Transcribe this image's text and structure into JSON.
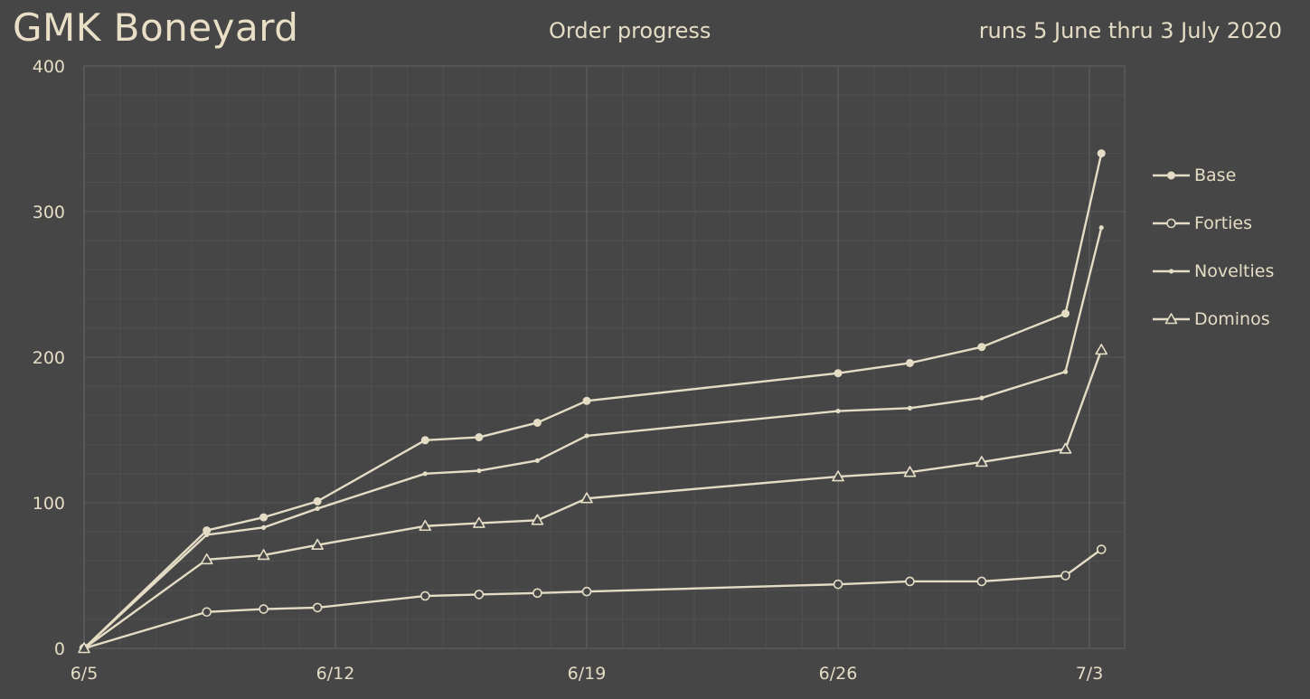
{
  "header": {
    "title": "GMK Boneyard",
    "subtitle": "Order progress",
    "date_range": "runs 5 June thru 3 July 2020"
  },
  "colors": {
    "background": "#464646",
    "line": "#e4dcc4",
    "grid_major": "#5a5a5a",
    "grid_minor": "#505050"
  },
  "chart_data": {
    "type": "line",
    "title": "Order progress",
    "xlabel": "",
    "ylabel": "",
    "ylim": [
      0,
      400
    ],
    "xlim": [
      "2020-06-05",
      "2020-07-03"
    ],
    "x_ticks": [
      "6/5",
      "6/12",
      "6/19",
      "6/26",
      "7/3"
    ],
    "y_ticks": [
      0,
      100,
      200,
      300,
      400
    ],
    "grid": true,
    "legend_position": "right",
    "x": [
      "2020-06-05",
      "2020-06-08 10:00",
      "2020-06-10",
      "2020-06-11 12:00",
      "2020-06-14 12:00",
      "2020-06-16",
      "2020-06-17 15:00",
      "2020-06-19",
      "2020-06-26",
      "2020-06-28",
      "2020-06-30",
      "2020-07-02 08:00",
      "2020-07-03 08:00"
    ],
    "series": [
      {
        "name": "Base",
        "marker": "filled-circle",
        "values": [
          0,
          81,
          90,
          101,
          143,
          145,
          155,
          170,
          189,
          196,
          207,
          230,
          340
        ]
      },
      {
        "name": "Forties",
        "marker": "open-circle",
        "values": [
          0,
          25,
          27,
          28,
          36,
          37,
          38,
          39,
          44,
          46,
          46,
          50,
          68
        ]
      },
      {
        "name": "Novelties",
        "marker": "small-dot",
        "values": [
          0,
          78,
          83,
          96,
          120,
          122,
          129,
          146,
          163,
          165,
          172,
          190,
          289
        ]
      },
      {
        "name": "Dominos",
        "marker": "open-triangle",
        "values": [
          0,
          61,
          64,
          71,
          84,
          86,
          88,
          103,
          118,
          121,
          128,
          137,
          205
        ]
      }
    ]
  }
}
